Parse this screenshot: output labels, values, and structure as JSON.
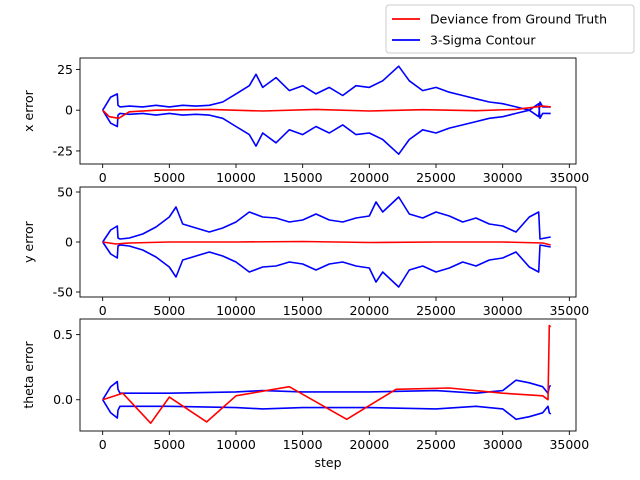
{
  "chart_data": [
    {
      "type": "line",
      "ylabel": "x error",
      "xlabel": "",
      "xlim": [
        -1700,
        35500
      ],
      "ylim": [
        -33,
        32
      ],
      "xticks": [
        0,
        5000,
        10000,
        15000,
        20000,
        25000,
        30000,
        35000
      ],
      "yticks": [
        -25,
        0,
        25
      ],
      "grid": false,
      "series": [
        {
          "name": "Deviance from Ground Truth",
          "color": "#ff0000",
          "x": [
            0,
            500,
            1200,
            2000,
            4000,
            8000,
            12000,
            16000,
            20000,
            24000,
            28000,
            31000,
            32500,
            33000,
            33600
          ],
          "y": [
            0,
            -4,
            -5,
            -1,
            0,
            0.5,
            -0.5,
            0.5,
            -0.5,
            0.3,
            -0.3,
            0.5,
            2,
            2.5,
            2
          ]
        },
        {
          "name": "3-Sigma Contour",
          "color": "#0000ff",
          "x": [
            0,
            600,
            1100,
            1150,
            1300,
            2000,
            3000,
            4000,
            5000,
            6000,
            7000,
            8000,
            9000,
            10000,
            11000,
            11500,
            12000,
            13000,
            14000,
            15000,
            16000,
            17000,
            18000,
            19000,
            20000,
            21000,
            22200,
            23000,
            24000,
            25000,
            26000,
            27000,
            28000,
            29000,
            30000,
            31000,
            32000,
            32700,
            32800,
            33000,
            33600
          ],
          "y": [
            0,
            8,
            10,
            3,
            2,
            2.5,
            2,
            3,
            2,
            3,
            2.5,
            3,
            5,
            10,
            15,
            22,
            14,
            20,
            12,
            15,
            10,
            14,
            9,
            15,
            14,
            18,
            27,
            18,
            12,
            14,
            11,
            9,
            7,
            5,
            4,
            2,
            0,
            -4,
            5,
            2,
            2
          ]
        }
      ]
    },
    {
      "type": "line",
      "ylabel": "y error",
      "xlabel": "",
      "xlim": [
        -1700,
        35500
      ],
      "ylim": [
        -55,
        55
      ],
      "xticks": [
        0,
        5000,
        10000,
        15000,
        20000,
        25000,
        30000,
        35000
      ],
      "yticks": [
        -50,
        0,
        50
      ],
      "grid": false,
      "series": [
        {
          "name": "Deviance from Ground Truth",
          "color": "#ff0000",
          "x": [
            0,
            1000,
            2000,
            5000,
            10000,
            15000,
            20000,
            25000,
            30000,
            33000,
            33600
          ],
          "y": [
            0,
            -2,
            -1,
            0,
            0,
            0.5,
            -0.5,
            0,
            0,
            -1,
            -3
          ]
        },
        {
          "name": "3-Sigma Contour",
          "color": "#0000ff",
          "x": [
            0,
            600,
            1100,
            1150,
            1300,
            2000,
            3000,
            4000,
            5000,
            5500,
            6000,
            7000,
            8000,
            9000,
            10000,
            11000,
            12000,
            13000,
            14000,
            15000,
            16000,
            17000,
            18000,
            19000,
            20000,
            20500,
            21000,
            22200,
            23000,
            24000,
            25000,
            26000,
            27000,
            28000,
            29000,
            30000,
            31000,
            32000,
            32700,
            32800,
            33600
          ],
          "y": [
            0,
            12,
            16,
            4,
            3,
            4,
            8,
            15,
            25,
            35,
            18,
            14,
            10,
            14,
            20,
            30,
            25,
            24,
            20,
            22,
            28,
            22,
            20,
            24,
            26,
            40,
            30,
            45,
            28,
            24,
            30,
            26,
            20,
            24,
            18,
            16,
            10,
            25,
            30,
            3,
            5
          ]
        }
      ]
    },
    {
      "type": "line",
      "ylabel": "theta error",
      "xlabel": "step",
      "xlim": [
        -1700,
        35500
      ],
      "ylim": [
        -0.24,
        0.62
      ],
      "xticks": [
        0,
        5000,
        10000,
        15000,
        20000,
        25000,
        30000,
        35000
      ],
      "yticks": [
        0.0,
        0.5
      ],
      "ytick_labels": [
        "0.0",
        "0.5"
      ],
      "grid": false,
      "series": [
        {
          "name": "Deviance from Ground Truth",
          "color": "#ff0000",
          "x": [
            0,
            1500,
            3600,
            5000,
            7800,
            10000,
            14000,
            18300,
            22000,
            26000,
            30000,
            33000,
            33400,
            33500,
            33600
          ],
          "y": [
            0,
            0.05,
            -0.18,
            0.02,
            -0.17,
            0.03,
            0.1,
            -0.15,
            0.08,
            0.09,
            0.05,
            0.03,
            0.0,
            0.57,
            0.56
          ]
        },
        {
          "name": "3-Sigma Contour",
          "color": "#0000ff",
          "x": [
            0,
            600,
            1100,
            1150,
            1300,
            2000,
            5000,
            10000,
            12000,
            15000,
            20000,
            25000,
            28000,
            30000,
            31000,
            32000,
            33000,
            33400,
            33500,
            33600
          ],
          "y": [
            0,
            0.1,
            0.14,
            0.08,
            0.05,
            0.05,
            0.05,
            0.06,
            0.07,
            0.06,
            0.06,
            0.07,
            0.05,
            0.07,
            0.15,
            0.13,
            0.1,
            0.05,
            0.1,
            0.11
          ]
        }
      ]
    }
  ],
  "legend": {
    "placement": "top-right",
    "entries": [
      {
        "label": "Deviance from Ground Truth",
        "color": "#ff0000"
      },
      {
        "label": "3-Sigma Contour",
        "color": "#0000ff"
      }
    ]
  }
}
